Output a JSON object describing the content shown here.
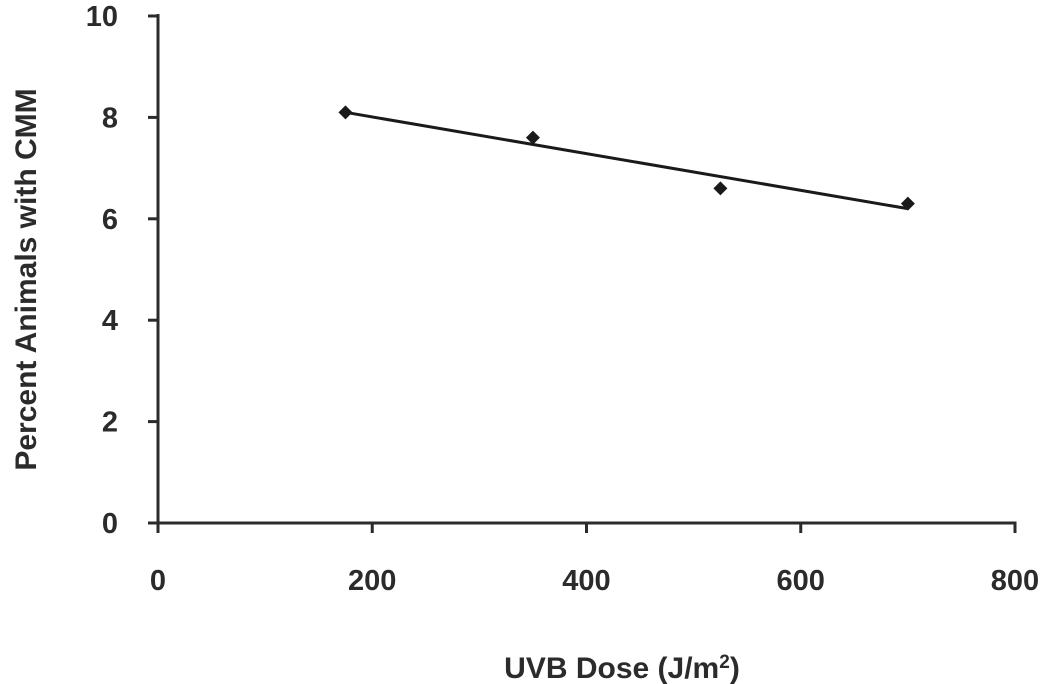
{
  "chart_data": {
    "type": "scatter",
    "title": "",
    "xlabel": "UVB Dose (J/m2)",
    "xlabel_parts": {
      "base": "UVB Dose (J/m",
      "sup": "2",
      "close": ")"
    },
    "ylabel": "Percent Animals with CMM",
    "xlim": [
      0,
      800
    ],
    "ylim": [
      0,
      10
    ],
    "x_ticks": [
      0,
      200,
      400,
      600,
      800
    ],
    "y_ticks": [
      0,
      2,
      4,
      6,
      8,
      10
    ],
    "grid": false,
    "legend": "none",
    "series": [
      {
        "marker": "diamond",
        "color": "#1a1a1a",
        "x": [
          175,
          350,
          525,
          700
        ],
        "y": [
          8.1,
          7.6,
          6.6,
          6.3
        ]
      }
    ],
    "trendline": {
      "type": "linear",
      "x": [
        175,
        700
      ],
      "y": [
        8.1,
        6.2
      ],
      "color": "#1a1a1a"
    }
  }
}
